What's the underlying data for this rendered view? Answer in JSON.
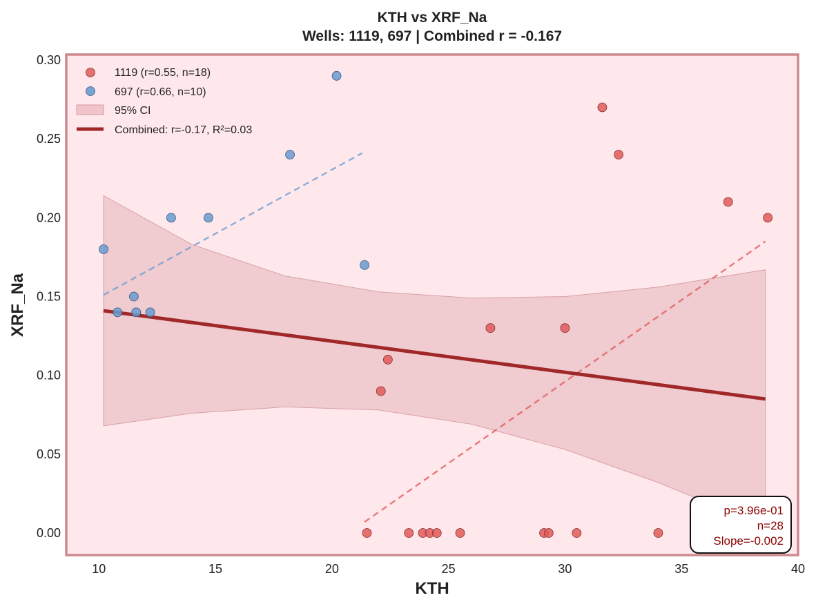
{
  "chart_data": {
    "type": "scatter",
    "title_line1": "KTH vs XRF_Na",
    "title_line2": "Wells: 1119, 697 | Combined r = -0.167",
    "xlabel": "KTH",
    "ylabel": "XRF_Na",
    "xlim": [
      8.6,
      40
    ],
    "ylim": [
      -0.014,
      0.3035
    ],
    "xticks": [
      10,
      15,
      20,
      25,
      30,
      35,
      40
    ],
    "xtick_labels": [
      "10",
      "15",
      "20",
      "25",
      "30",
      "35",
      "40"
    ],
    "yticks": [
      0.0,
      0.05,
      0.1,
      0.15,
      0.2,
      0.25,
      0.3
    ],
    "ytick_labels": [
      "0.00",
      "0.05",
      "0.10",
      "0.15",
      "0.20",
      "0.25",
      "0.30"
    ],
    "grid": false,
    "legend_position": "top-left",
    "background_color": "#ffe8ec",
    "series": [
      {
        "name": "1119 (r=0.55, n=18)",
        "color": "#e05a5a",
        "x": [
          21.5,
          23.3,
          23.9,
          24.2,
          24.5,
          25.5,
          29.1,
          29.3,
          30.5,
          34.0,
          22.1,
          22.4,
          26.8,
          30.0,
          31.6,
          32.3,
          37.0,
          38.7
        ],
        "y": [
          0,
          0,
          0,
          0,
          0,
          0,
          0,
          0,
          0,
          0,
          0.09,
          0.11,
          0.13,
          0.13,
          0.27,
          0.24,
          0.21,
          0.2
        ],
        "trend": {
          "x": [
            21.4,
            38.6
          ],
          "y": [
            0.007,
            0.185
          ]
        }
      },
      {
        "name": "697 (r=0.66, n=10)",
        "color": "#6a9bd0",
        "x": [
          10.2,
          10.8,
          11.5,
          11.6,
          12.2,
          13.1,
          14.7,
          18.2,
          20.2,
          21.4
        ],
        "y": [
          0.18,
          0.14,
          0.15,
          0.14,
          0.14,
          0.2,
          0.2,
          0.24,
          0.29,
          0.17
        ],
        "trend": {
          "x": [
            10.2,
            21.3
          ],
          "y": [
            0.151,
            0.241
          ]
        }
      }
    ],
    "ci_band": {
      "label": "95% CI",
      "x": [
        10.2,
        14,
        18,
        22,
        26,
        30,
        34,
        38.6
      ],
      "upper": [
        0.214,
        0.183,
        0.163,
        0.153,
        0.149,
        0.15,
        0.156,
        0.167
      ],
      "lower": [
        0.068,
        0.076,
        0.08,
        0.078,
        0.069,
        0.053,
        0.032,
        0.004
      ]
    },
    "combined_fit": {
      "label": "Combined: r=-0.17, R²=0.03",
      "color": "#a02828",
      "x": [
        10.2,
        38.6
      ],
      "y": [
        0.141,
        0.085
      ]
    },
    "stats_box": {
      "lines": [
        "p=3.96e-01",
        "n=28",
        "Slope=-0.002"
      ],
      "color": "#8b0000"
    }
  }
}
